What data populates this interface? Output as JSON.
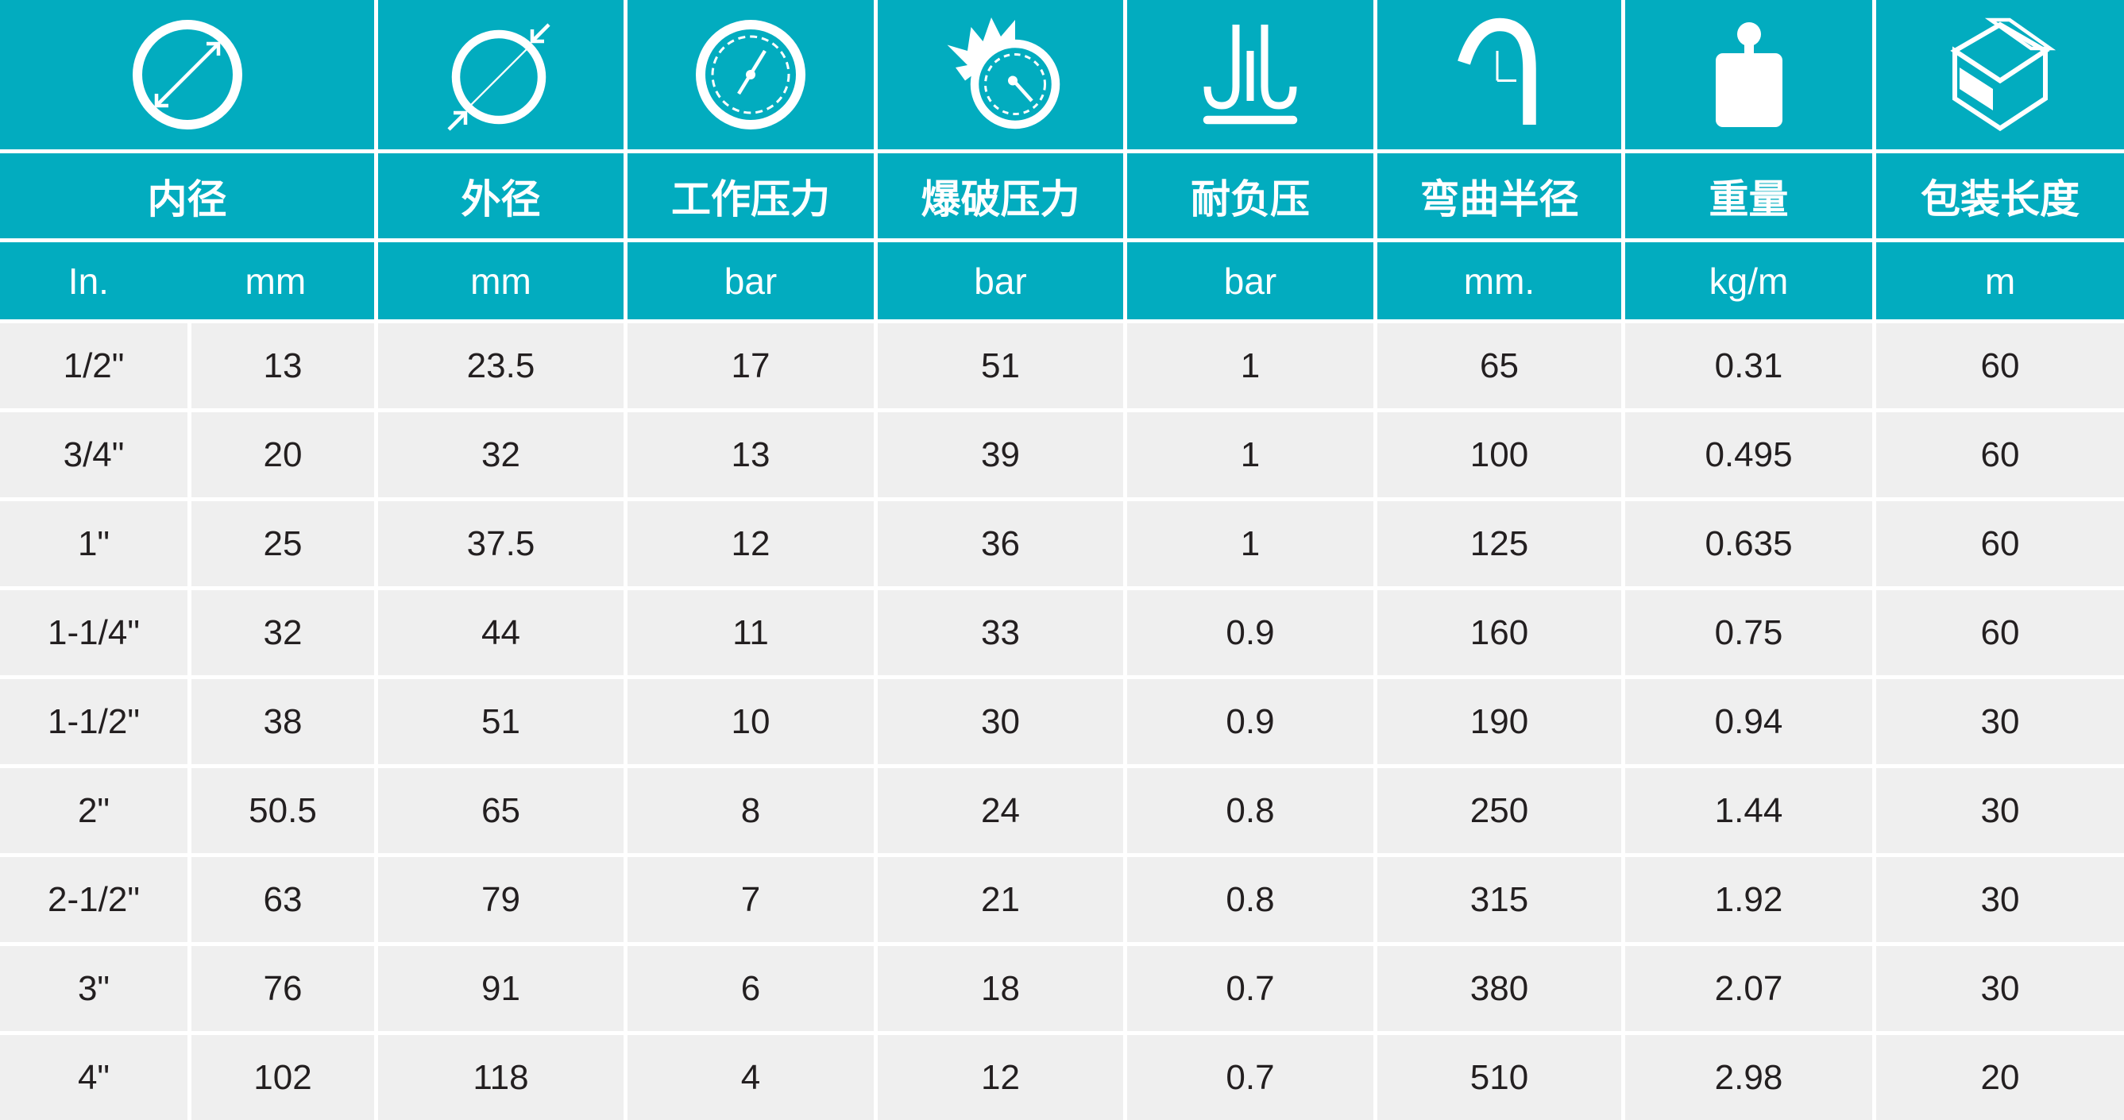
{
  "colors": {
    "header": "#02acbf",
    "row": "#efefef",
    "text": "#231f20"
  },
  "columns": [
    {
      "icon": "inner-diameter-icon",
      "title": "内径",
      "units": [
        "In.",
        "mm"
      ]
    },
    {
      "icon": "outer-diameter-icon",
      "title": "外径",
      "units": [
        "mm"
      ]
    },
    {
      "icon": "pressure-gauge-icon",
      "title": "工作压力",
      "units": [
        "bar"
      ]
    },
    {
      "icon": "burst-gauge-icon",
      "title": "爆破压力",
      "units": [
        "bar"
      ]
    },
    {
      "icon": "vacuum-icon",
      "title": "耐负压",
      "units": [
        "bar"
      ]
    },
    {
      "icon": "bend-radius-icon",
      "title": "弯曲半径",
      "units": [
        "mm."
      ]
    },
    {
      "icon": "weight-icon",
      "title": "重量",
      "units": [
        "kg/m"
      ]
    },
    {
      "icon": "package-box-icon",
      "title": "包装长度",
      "units": [
        "m"
      ]
    }
  ],
  "rows": [
    [
      "1/2\"",
      "13",
      "23.5",
      "17",
      "51",
      "1",
      "65",
      "0.31",
      "60"
    ],
    [
      "3/4\"",
      "20",
      "32",
      "13",
      "39",
      "1",
      "100",
      "0.495",
      "60"
    ],
    [
      "1\"",
      "25",
      "37.5",
      "12",
      "36",
      "1",
      "125",
      "0.635",
      "60"
    ],
    [
      "1-1/4\"",
      "32",
      "44",
      "11",
      "33",
      "0.9",
      "160",
      "0.75",
      "60"
    ],
    [
      "1-1/2\"",
      "38",
      "51",
      "10",
      "30",
      "0.9",
      "190",
      "0.94",
      "30"
    ],
    [
      "2\"",
      "50.5",
      "65",
      "8",
      "24",
      "0.8",
      "250",
      "1.44",
      "30"
    ],
    [
      "2-1/2\"",
      "63",
      "79",
      "7",
      "21",
      "0.8",
      "315",
      "1.92",
      "30"
    ],
    [
      "3\"",
      "76",
      "91",
      "6",
      "18",
      "0.7",
      "380",
      "2.07",
      "30"
    ],
    [
      "4\"",
      "102",
      "118",
      "4",
      "12",
      "0.7",
      "510",
      "2.98",
      "20"
    ]
  ]
}
